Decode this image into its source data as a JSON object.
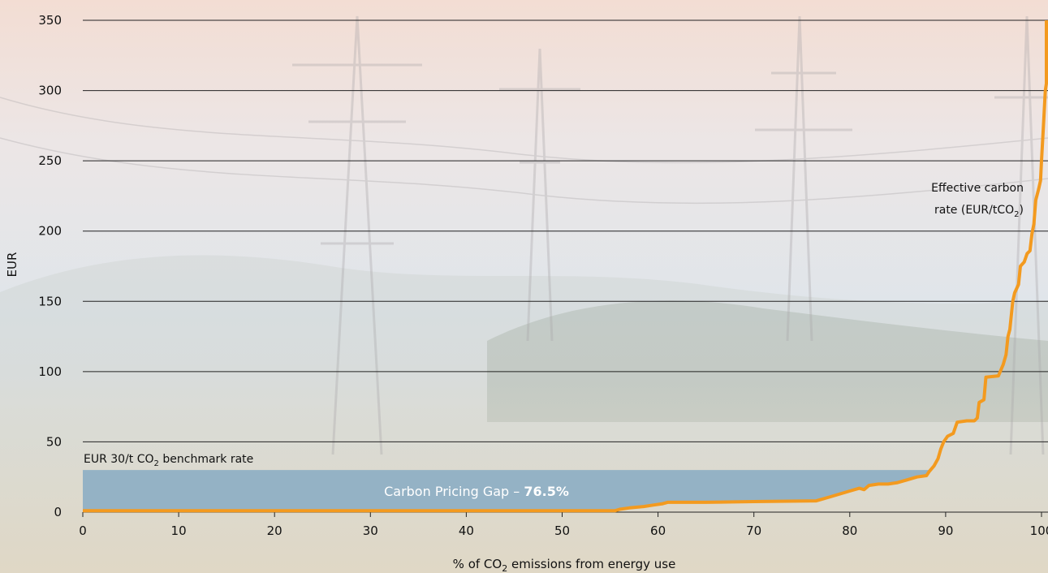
{
  "chart_data": {
    "type": "line",
    "title": "",
    "xlabel": "% of CO",
    "xlabel_sub": "2",
    "xlabel_tail": " emissions from energy use",
    "ylabel": "EUR",
    "xlim": [
      0,
      100
    ],
    "ylim": [
      0,
      350
    ],
    "x_ticks": [
      0,
      10,
      20,
      30,
      40,
      50,
      60,
      70,
      80,
      90,
      100
    ],
    "y_ticks": [
      0,
      50,
      100,
      150,
      200,
      250,
      300,
      350
    ],
    "grid": "horizontal",
    "benchmark": {
      "value": 30,
      "label": "EUR 30/t CO",
      "label_sub": "2",
      "label_tail": " benchmark rate"
    },
    "gap_label": {
      "text": "Carbon Pricing Gap – ",
      "value": "76.5%"
    },
    "series": [
      {
        "name_line1": "Effective carbon",
        "name_line2": "rate (EUR/tCO",
        "name_sub": "2",
        "name_tail": ")",
        "color": "#f39a1f",
        "points": [
          [
            0,
            1
          ],
          [
            55.5,
            1
          ],
          [
            56,
            2
          ],
          [
            57,
            3
          ],
          [
            58.5,
            4
          ],
          [
            59.5,
            5
          ],
          [
            60.5,
            6
          ],
          [
            61,
            7
          ],
          [
            65,
            7
          ],
          [
            70,
            7.5
          ],
          [
            76.5,
            8
          ],
          [
            78,
            11
          ],
          [
            80,
            15
          ],
          [
            81,
            17
          ],
          [
            81.5,
            16
          ],
          [
            82,
            19
          ],
          [
            83,
            20
          ],
          [
            84,
            20
          ],
          [
            85,
            21
          ],
          [
            86,
            23
          ],
          [
            87,
            25
          ],
          [
            88,
            26
          ],
          [
            88.3,
            29
          ],
          [
            88.8,
            33
          ],
          [
            89.2,
            38
          ],
          [
            89.5,
            45
          ],
          [
            89.8,
            50
          ],
          [
            90.2,
            54
          ],
          [
            90.8,
            56
          ],
          [
            91.2,
            64
          ],
          [
            92.2,
            65
          ],
          [
            93,
            65
          ],
          [
            93.3,
            67
          ],
          [
            93.5,
            78
          ],
          [
            94,
            80
          ],
          [
            94.2,
            96
          ],
          [
            95.5,
            97
          ],
          [
            96,
            105
          ],
          [
            96.3,
            112
          ],
          [
            96.5,
            125
          ],
          [
            96.7,
            130
          ],
          [
            97,
            150
          ],
          [
            97.2,
            156
          ],
          [
            97.6,
            162
          ],
          [
            97.8,
            175
          ],
          [
            98.2,
            178
          ],
          [
            98.5,
            184
          ],
          [
            98.8,
            186
          ],
          [
            99,
            198
          ],
          [
            99.2,
            205
          ],
          [
            99.4,
            222
          ],
          [
            99.7,
            230
          ],
          [
            99.9,
            236
          ],
          [
            100,
            250
          ],
          [
            100.2,
            275
          ],
          [
            100.4,
            300
          ],
          [
            100.7,
            305
          ],
          [
            100.9,
            330
          ],
          [
            101,
            350
          ]
        ]
      }
    ],
    "colors": {
      "line": "#f39a1f",
      "gap_fill": "#8fb0c4",
      "grid": "#222222"
    }
  }
}
